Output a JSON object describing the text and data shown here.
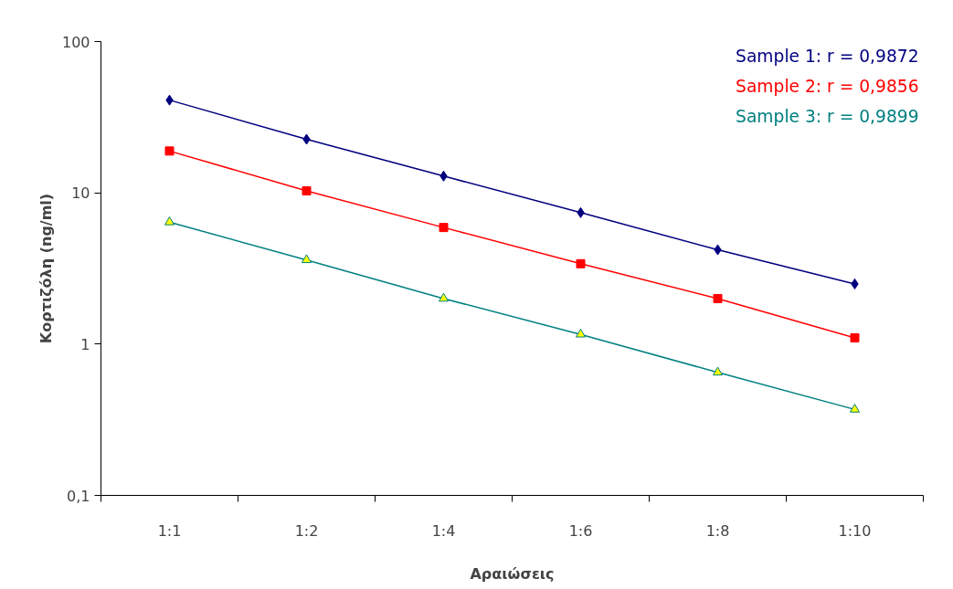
{
  "chart_data": {
    "type": "line",
    "xlabel": "Αραιώσεις",
    "ylabel": "Κορτιζόλη (ng/ml)",
    "categories": [
      "1:1",
      "1:2",
      "1:4",
      "1:6",
      "1:8",
      "1:10"
    ],
    "series": [
      {
        "name": "Sample 1: r = 0,9872",
        "color": "#000080",
        "marker": "diamond",
        "values": [
          41,
          22.6,
          12.9,
          7.4,
          4.2,
          2.5
        ]
      },
      {
        "name": "Sample 2: r = 0,9856",
        "color": "#ff0000",
        "marker": "square",
        "values": [
          18.9,
          10.3,
          5.9,
          3.4,
          2.0,
          1.1
        ]
      },
      {
        "name": "Sample 3: r = 0,9899",
        "color": "#008080",
        "marker": "triangle",
        "values": [
          6.4,
          3.6,
          2.0,
          1.16,
          0.65,
          0.37
        ]
      }
    ],
    "log": true,
    "ylim": [
      0.1,
      100
    ],
    "yticks": [
      {
        "value": 0.1,
        "label": "0,1"
      },
      1,
      10,
      100
    ],
    "grid": false,
    "legend": "top right",
    "line_style": "solid"
  }
}
